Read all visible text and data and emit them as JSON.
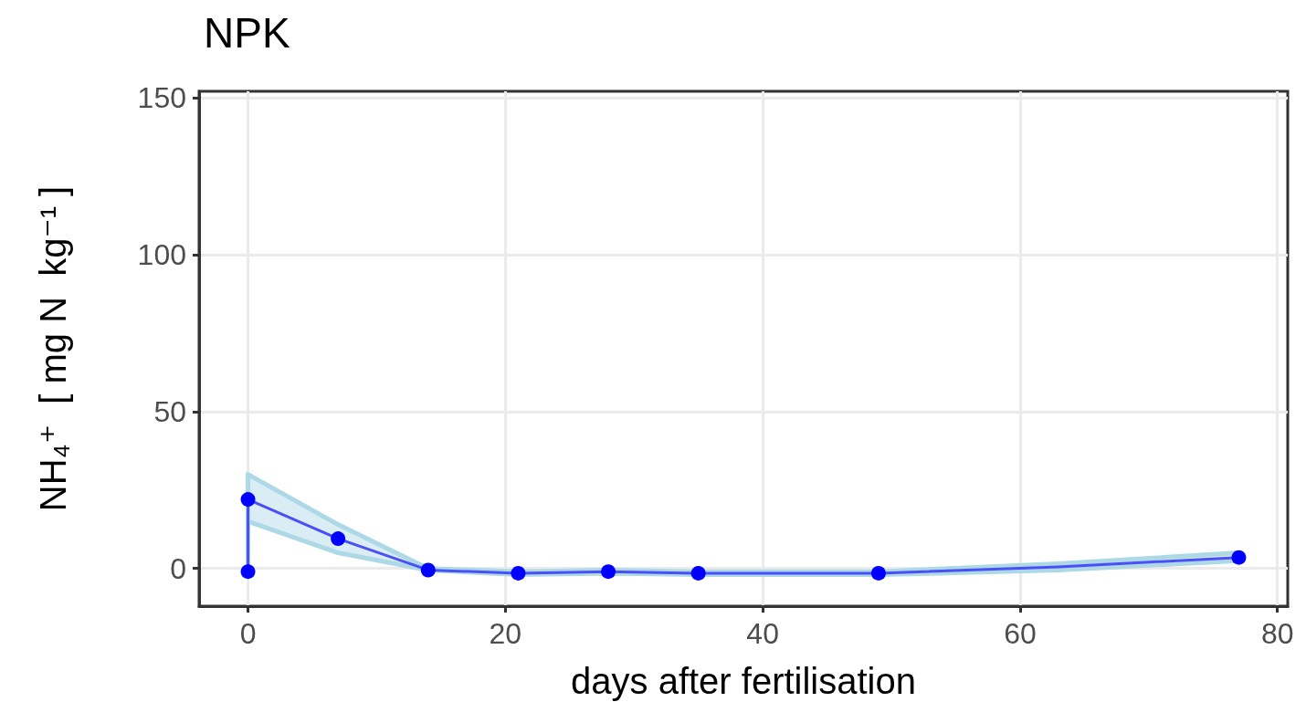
{
  "chart_data": {
    "type": "line",
    "title": "NPK",
    "xlabel": "days after fertilisation",
    "ylabel": "NH₄⁺  [ mg N  kg⁻¹ ]",
    "xlim": [
      -3.8,
      80.8
    ],
    "xticks": [
      0,
      20,
      40,
      60,
      80
    ],
    "ylim": [
      -12,
      152
    ],
    "yticks": [
      0,
      50,
      100,
      150
    ],
    "grid": true,
    "series": [
      {
        "color": "#4a50f7",
        "x": [
          0,
          0,
          7,
          14,
          21,
          28,
          35,
          49,
          63,
          77
        ],
        "values": [
          -1,
          22,
          9.5,
          -0.5,
          -1.5,
          -1,
          -1.5,
          -1.5,
          0.5,
          3.5
        ],
        "lower": [
          -1,
          15,
          5,
          -0.5,
          -2,
          -1.5,
          -2,
          -2,
          -0.5,
          2.5
        ],
        "upper": [
          -1,
          30,
          14,
          0,
          -1,
          -0.5,
          -1,
          -1,
          1.5,
          5
        ]
      },
      {
        "type": "scatter",
        "color": "#0000ff",
        "x": [
          0,
          0,
          7,
          14,
          21,
          28,
          35,
          49,
          77
        ],
        "values": [
          -1,
          22,
          9.5,
          -0.5,
          -1.5,
          -1,
          -1.5,
          -1.5,
          3.5
        ]
      }
    ]
  }
}
